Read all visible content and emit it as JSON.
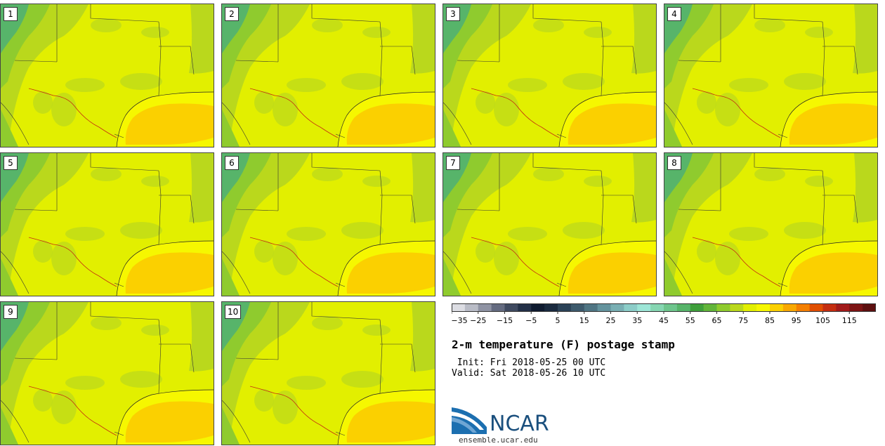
{
  "panels": [
    {
      "label": "1"
    },
    {
      "label": "2"
    },
    {
      "label": "3"
    },
    {
      "label": "4"
    },
    {
      "label": "5"
    },
    {
      "label": "6"
    },
    {
      "label": "7"
    },
    {
      "label": "8"
    },
    {
      "label": "9"
    },
    {
      "label": "10"
    }
  ],
  "legend": {
    "ticks": [
      "−35",
      "−25",
      "−15",
      "−5",
      "5",
      "15",
      "25",
      "35",
      "45",
      "55",
      "65",
      "75",
      "85",
      "95",
      "105",
      "115"
    ],
    "colors": [
      "#dcdde3",
      "#b9bcc6",
      "#8f93a3",
      "#646b80",
      "#3f4a60",
      "#233047",
      "#0f1b30",
      "#1a2a3f",
      "#2b4257",
      "#3d5a6c",
      "#4f7583",
      "#64939d",
      "#79afb3",
      "#8ccdc8",
      "#9de6d7",
      "#86d6b2",
      "#6ec58d",
      "#57b46a",
      "#3f9f3b",
      "#62b53a",
      "#8fcb2e",
      "#bad81c",
      "#e2ef00",
      "#f6f700",
      "#fbd000",
      "#f8a800",
      "#f47f00",
      "#e04e00",
      "#c42e10",
      "#a21b1b",
      "#7d1414",
      "#5d1010"
    ]
  },
  "title": "2-m temperature (F) postage stamp",
  "init": " Init: Fri 2018-05-25 00 UTC",
  "valid": "Valid: Sat 2018-05-26 10 UTC",
  "logo": {
    "name": "NCAR",
    "url": "ensemble.ucar.edu"
  }
}
